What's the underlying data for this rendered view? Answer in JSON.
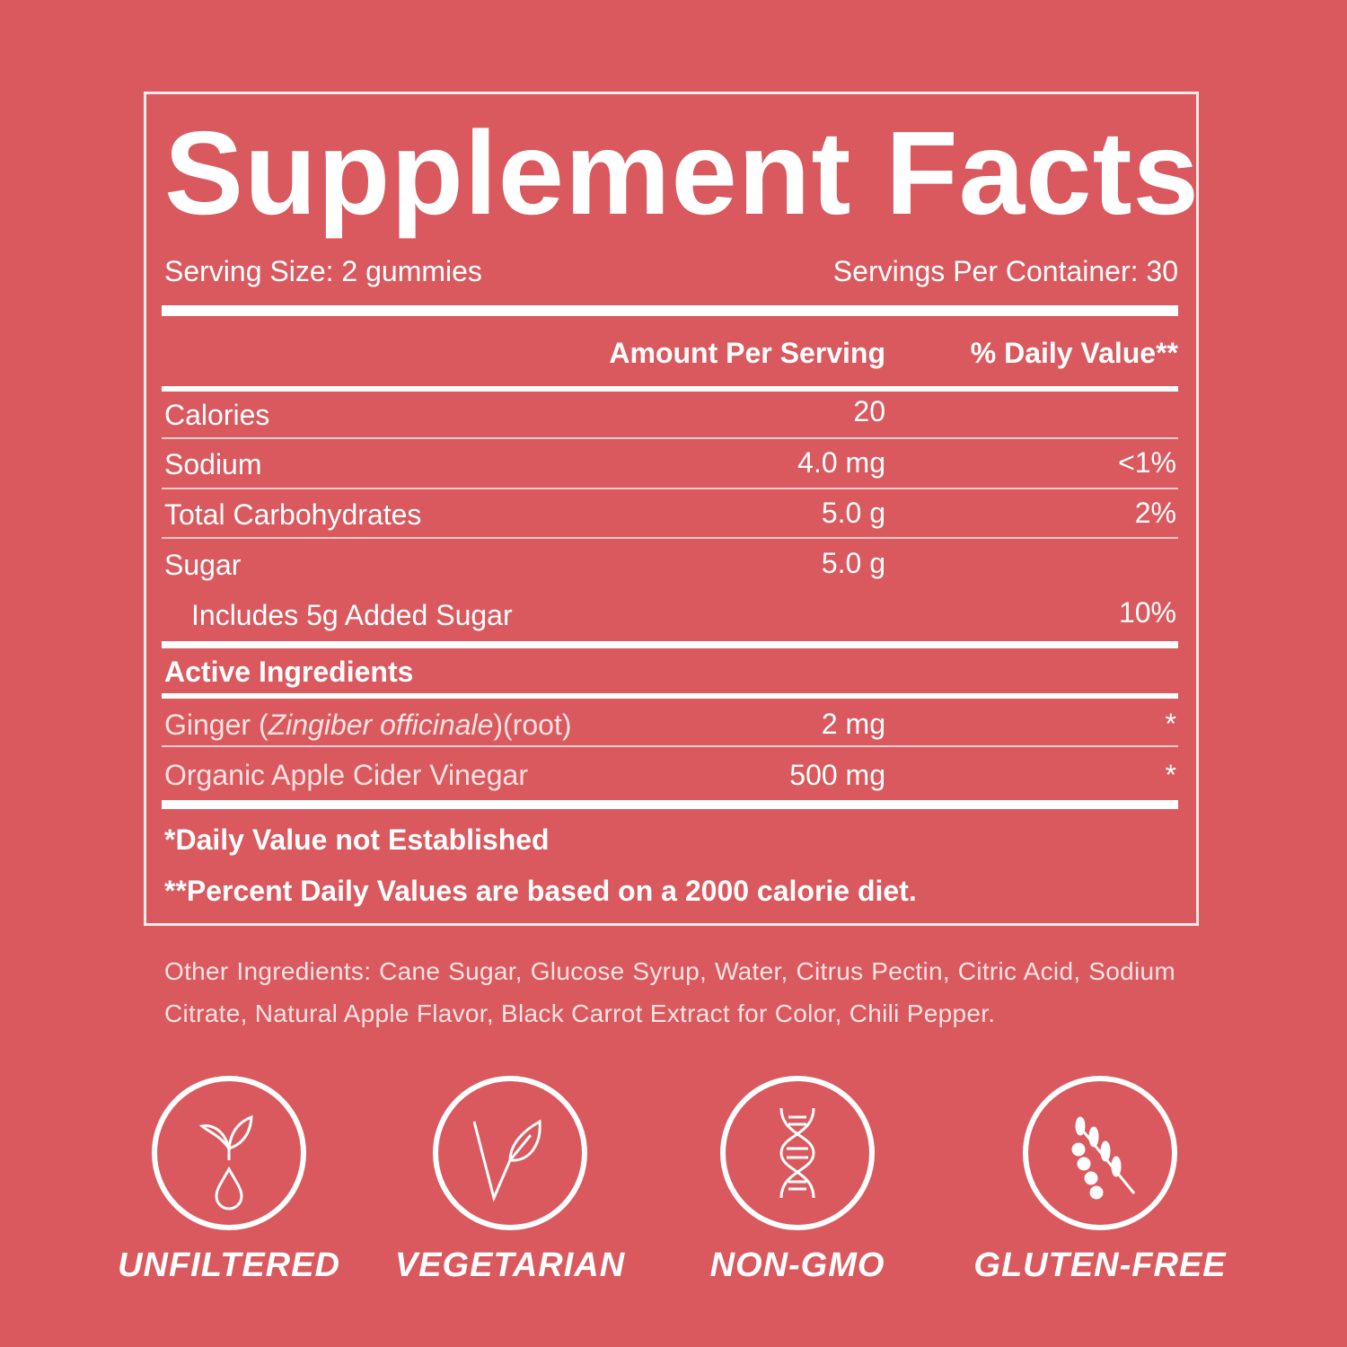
{
  "title": "Supplement Facts",
  "serving_size": "Serving Size: 2 gummies",
  "servings_per_container": "Servings Per Container: 30",
  "headers": {
    "amount": "Amount Per Serving",
    "daily_value": "% Daily Value**"
  },
  "nutrients": [
    {
      "name": "Calories",
      "amount": "20",
      "dv": ""
    },
    {
      "name": "Sodium",
      "amount": "4.0 mg",
      "dv": "<1%"
    },
    {
      "name": "Total Carbohydrates",
      "amount": "5.0 g",
      "dv": "2%"
    },
    {
      "name": "Sugar",
      "amount": "5.0 g",
      "dv": ""
    },
    {
      "name": "Includes 5g Added Sugar",
      "amount": "",
      "dv": "10%"
    }
  ],
  "active_heading": "Active Ingredients",
  "active": [
    {
      "name_pre": "Ginger (",
      "name_italic": "Zingiber officinale",
      "name_post": ")(root)",
      "amount": "2 mg",
      "dv": "*"
    },
    {
      "name": "Organic Apple Cider Vinegar",
      "amount": "500 mg",
      "dv": "*"
    }
  ],
  "footnotes": [
    "*Daily Value not Established",
    "**Percent Daily Values are based on a 2000 calorie diet."
  ],
  "other_ingredients": "Other Ingredients: Cane Sugar, Glucose Syrup, Water, Citrus Pectin, Citric Acid, Sodium Citrate, Natural Apple Flavor, Black Carrot Extract for Color, Chili Pepper.",
  "badges": [
    {
      "label": "UNFILTERED",
      "icon": "leaf-drop-icon"
    },
    {
      "label": "VEGETARIAN",
      "icon": "v-leaf-icon"
    },
    {
      "label": "NON-GMO",
      "icon": "dna-icon"
    },
    {
      "label": "GLUTEN-FREE",
      "icon": "wheat-icon"
    }
  ],
  "colors": {
    "background": "#d9595e",
    "foreground": "#ffffff"
  }
}
